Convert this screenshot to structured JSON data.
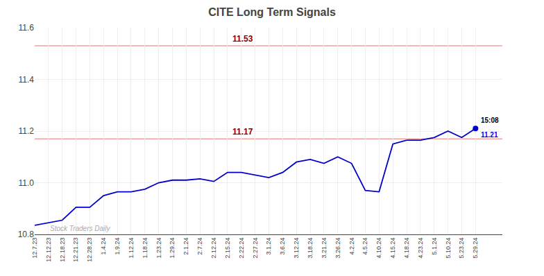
{
  "chart_data": {
    "type": "line",
    "title": "CITE Long Term Signals",
    "categories": [
      "12.7.23",
      "12.12.23",
      "12.18.23",
      "12.21.23",
      "12.28.23",
      "1.4.24",
      "1.9.24",
      "1.12.24",
      "1.18.24",
      "1.23.24",
      "1.29.24",
      "2.1.24",
      "2.7.24",
      "2.12.24",
      "2.15.24",
      "2.22.24",
      "2.27.24",
      "3.1.24",
      "3.6.24",
      "3.12.24",
      "3.18.24",
      "3.21.24",
      "3.26.24",
      "4.2.24",
      "4.5.24",
      "4.10.24",
      "4.15.24",
      "4.18.24",
      "4.23.24",
      "5.1.24",
      "5.10.24",
      "5.23.24",
      "5.29.24"
    ],
    "values": [
      10.835,
      10.845,
      10.855,
      10.905,
      10.905,
      10.95,
      10.965,
      10.965,
      10.975,
      11.0,
      11.01,
      11.01,
      11.015,
      11.005,
      11.04,
      11.04,
      11.03,
      11.02,
      11.04,
      11.08,
      11.09,
      11.075,
      11.1,
      11.075,
      10.97,
      10.965,
      11.15,
      11.165,
      11.165,
      11.175,
      11.2,
      11.175,
      11.21
    ],
    "color": "#0000cc",
    "reference_lines": [
      {
        "value": 11.53,
        "label": "11.53",
        "color": "#f4a0a0",
        "label_color": "#8b0000"
      },
      {
        "value": 11.17,
        "label": "11.17",
        "color": "#f4a0a0",
        "label_color": "#8b0000"
      }
    ],
    "annotations": [
      {
        "text": "15:08",
        "color": "#000000"
      },
      {
        "text": "11.21",
        "color": "#0000ff"
      }
    ],
    "watermark": {
      "text": "Stock Traders Daily",
      "color": "#aaaaaa"
    },
    "ylim": [
      10.8,
      11.6
    ],
    "yticks": [
      10.8,
      {
        "value": 11,
        "label": "11.0"
      },
      11.2,
      11.4,
      11.6
    ],
    "grid": true
  }
}
